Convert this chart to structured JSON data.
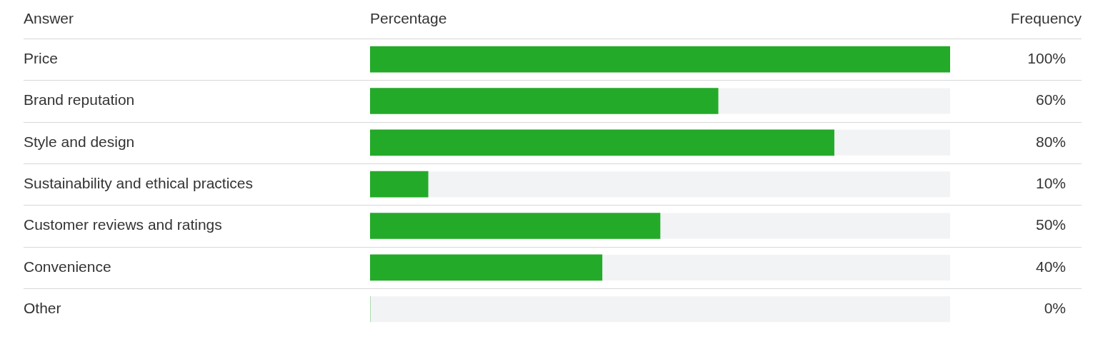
{
  "chart_data": {
    "type": "bar",
    "orientation": "horizontal",
    "ylabel": "Answer",
    "xlabel": "Percentage",
    "annotations": [
      "Frequency"
    ],
    "categories": [
      "Price",
      "Brand reputation",
      "Style and design",
      "Sustainability and ethical practices",
      "Customer reviews and ratings",
      "Convenience",
      "Other"
    ],
    "values": [
      100,
      60,
      80,
      10,
      50,
      40,
      0
    ],
    "value_labels": [
      "100%",
      "60%",
      "80%",
      "10%",
      "50%",
      "40%",
      "0%"
    ],
    "color": "#24aa29",
    "xlim": [
      0,
      100
    ],
    "tick_labels": "y",
    "grid": "y",
    "legend": false
  }
}
